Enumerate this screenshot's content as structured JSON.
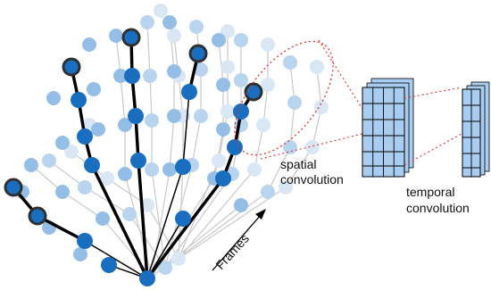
{
  "labels": {
    "spatial_line1": "spatial",
    "spatial_line2": "convolution",
    "temporal_line1": "temporal",
    "temporal_line2": "convolution",
    "frames": "Frames"
  },
  "colors": {
    "joint_front": "#1a6ec0",
    "joint_mid": "#8fb9e4",
    "joint_back": "#d6e6f6",
    "highlight_outline": "#2f2f2f",
    "bone_front": "#000000",
    "bone_back": "#b5b5b5",
    "dotted_red": "#e03030",
    "feature_fill": "#a9cdf0",
    "feature_grid": "#000000"
  }
}
